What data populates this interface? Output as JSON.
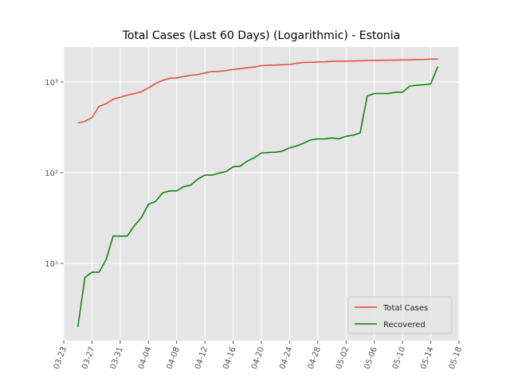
{
  "chart_data": {
    "type": "line",
    "title": "Total Cases (Last 60 Days) (Logarithmic) - Estonia",
    "x": [
      "03-25",
      "03-26",
      "03-27",
      "03-28",
      "03-29",
      "03-30",
      "03-31",
      "04-01",
      "04-02",
      "04-03",
      "04-04",
      "04-05",
      "04-06",
      "04-07",
      "04-08",
      "04-09",
      "04-10",
      "04-11",
      "04-12",
      "04-13",
      "04-14",
      "04-15",
      "04-16",
      "04-17",
      "04-18",
      "04-19",
      "04-20",
      "04-21",
      "04-22",
      "04-23",
      "04-24",
      "04-25",
      "04-26",
      "04-27",
      "04-28",
      "04-29",
      "04-30",
      "05-01",
      "05-02",
      "05-03",
      "05-04",
      "05-05",
      "05-06",
      "05-07",
      "05-08",
      "05-09",
      "05-10",
      "05-11",
      "05-12",
      "05-13",
      "05-14",
      "05-15"
    ],
    "series": [
      {
        "name": "Total Cases",
        "color": "#E24A33",
        "values": [
          352,
          369,
          404,
          538,
          575,
          645,
          679,
          715,
          745,
          779,
          858,
          961,
          1039,
          1097,
          1108,
          1149,
          1185,
          1207,
          1258,
          1304,
          1309,
          1332,
          1373,
          1400,
          1434,
          1459,
          1512,
          1528,
          1535,
          1552,
          1559,
          1605,
          1643,
          1647,
          1660,
          1666,
          1689,
          1694,
          1700,
          1703,
          1711,
          1720,
          1725,
          1733,
          1739,
          1741,
          1746,
          1751,
          1770,
          1773,
          1784,
          1791
        ]
      },
      {
        "name": "Recovered",
        "color": "#008000",
        "values": [
          2,
          7,
          8,
          8,
          11,
          20,
          20,
          20,
          26,
          32,
          45,
          48,
          60,
          63,
          63,
          70,
          73,
          85,
          94,
          94,
          99,
          103,
          116,
          118,
          134,
          146,
          165,
          167,
          168,
          173,
          188,
          197,
          212,
          230,
          235,
          236,
          241,
          236,
          252,
          259,
          275,
          700,
          745,
          745,
          745,
          770,
          770,
          900,
          920,
          930,
          950,
          1480
        ]
      }
    ],
    "xlim": [
      "03-23",
      "05-18"
    ],
    "xticks": [
      "03-23",
      "03-27",
      "03-31",
      "04-04",
      "04-08",
      "04-12",
      "04-16",
      "04-20",
      "04-24",
      "04-28",
      "05-02",
      "05-06",
      "05-10",
      "05-14",
      "05-18"
    ],
    "ylim": [
      1.41,
      2430
    ],
    "yticks": [
      {
        "value": 10,
        "label": "10¹"
      },
      {
        "value": 100,
        "label": "10²"
      },
      {
        "value": 1000,
        "label": "10³"
      }
    ],
    "log_y": true,
    "grid": true,
    "legend": "lower right"
  }
}
